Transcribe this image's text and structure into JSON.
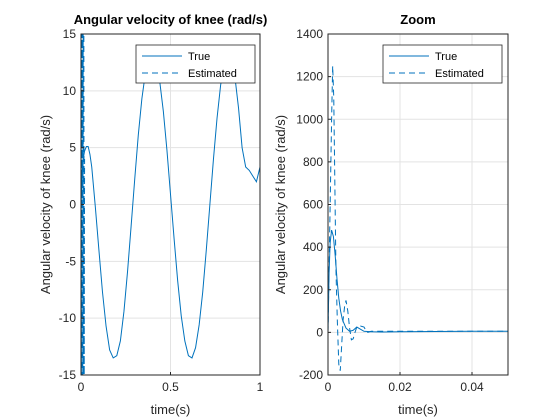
{
  "chart_data": [
    {
      "type": "line",
      "title": "Angular velocity of knee (rad/s)",
      "xlabel": "time(s)",
      "ylabel": "Angular velocity of knee (rad/s)",
      "xlim": [
        0,
        1
      ],
      "ylim": [
        -15,
        15
      ],
      "xticks": [
        0,
        0.5,
        1
      ],
      "xtick_labels": [
        "0",
        "0.5",
        "1"
      ],
      "yticks": [
        -15,
        -10,
        -5,
        0,
        5,
        10,
        15
      ],
      "ytick_labels": [
        "-15",
        "-10",
        "-5",
        "0",
        "5",
        "10",
        "15"
      ],
      "grid": true,
      "legend_position": "top-right",
      "line_color": "#0072BD",
      "series": [
        {
          "name": "True",
          "style": "solid",
          "x": [
            0,
            0.005,
            0.01,
            0.02,
            0.03,
            0.04,
            0.05,
            0.06,
            0.08,
            0.1,
            0.12,
            0.14,
            0.16,
            0.18,
            0.2,
            0.22,
            0.24,
            0.26,
            0.28,
            0.3,
            0.32,
            0.34,
            0.36,
            0.38,
            0.4,
            0.42,
            0.44,
            0.46,
            0.48,
            0.5,
            0.52,
            0.54,
            0.56,
            0.58,
            0.6,
            0.62,
            0.64,
            0.66,
            0.68,
            0.7,
            0.72,
            0.74,
            0.76,
            0.78,
            0.8,
            0.82,
            0.84,
            0.86,
            0.88,
            0.9,
            0.92,
            0.94,
            0.96,
            0.98,
            1.0
          ],
          "y": [
            0,
            2.5,
            3.8,
            4.7,
            5.1,
            5.1,
            4.4,
            3.3,
            -0.2,
            -4.0,
            -7.7,
            -10.7,
            -12.8,
            -13.5,
            -13.3,
            -12.0,
            -9.4,
            -5.9,
            -1.9,
            2.2,
            6.1,
            9.3,
            11.6,
            12.9,
            13.0,
            12.4,
            10.8,
            8.2,
            4.8,
            0.9,
            -3.0,
            -6.7,
            -9.8,
            -12.0,
            -13.3,
            -13.5,
            -12.6,
            -10.6,
            -7.7,
            -4.0,
            0.0,
            4.0,
            7.6,
            10.5,
            12.4,
            13.2,
            12.8,
            11.2,
            8.5,
            5.0,
            3.3,
            3.0,
            2.5,
            2.0,
            3.3
          ]
        },
        {
          "name": "Estimated",
          "style": "dashed",
          "x": [
            0.0,
            0.002,
            0.004,
            0.006,
            0.008,
            0.01,
            0.012,
            0.014,
            0.016,
            0.018,
            0.02
          ],
          "y": [
            15,
            -15,
            15,
            -15,
            15,
            -15,
            15,
            -15,
            15,
            -15,
            4.0
          ]
        }
      ]
    },
    {
      "type": "line",
      "title": "Zoom",
      "xlabel": "time(s)",
      "ylabel": "Angular velocity of knee (rad/s)",
      "xlim": [
        0,
        0.05
      ],
      "ylim": [
        -200,
        1400
      ],
      "xticks": [
        0,
        0.02,
        0.04
      ],
      "xtick_labels": [
        "0",
        "0.02",
        "0.04"
      ],
      "yticks": [
        -200,
        0,
        200,
        400,
        600,
        800,
        1000,
        1200,
        1400
      ],
      "ytick_labels": [
        "-200",
        "0",
        "200",
        "400",
        "600",
        "800",
        "1000",
        "1200",
        "1400"
      ],
      "grid": true,
      "legend_position": "top-right",
      "line_color": "#0072BD",
      "series": [
        {
          "name": "True",
          "style": "solid",
          "x": [
            0,
            0.0003,
            0.0006,
            0.001,
            0.0015,
            0.002,
            0.0025,
            0.003,
            0.0035,
            0.004,
            0.005,
            0.006,
            0.007,
            0.008,
            0.009,
            0.01,
            0.012,
            0.015,
            0.02,
            0.03,
            0.04,
            0.05
          ],
          "y": [
            0,
            280,
            420,
            480,
            450,
            360,
            250,
            160,
            100,
            60,
            20,
            5,
            10,
            25,
            15,
            5,
            3,
            2,
            3,
            4,
            5,
            5
          ]
        },
        {
          "name": "Estimated",
          "style": "dashed",
          "x": [
            0,
            0.0005,
            0.001,
            0.0013,
            0.0016,
            0.0019,
            0.0022,
            0.0026,
            0.003,
            0.0034,
            0.0038,
            0.0042,
            0.0046,
            0.005,
            0.0055,
            0.006,
            0.0065,
            0.007,
            0.0075,
            0.008,
            0.009,
            0.01,
            0.0105,
            0.011,
            0.012,
            0.014,
            0.016,
            0.02,
            0.03,
            0.04,
            0.05
          ],
          "y": [
            0,
            500,
            1000,
            1250,
            1100,
            700,
            300,
            50,
            -150,
            -180,
            -60,
            60,
            120,
            150,
            100,
            20,
            -35,
            -30,
            0,
            25,
            30,
            25,
            10,
            0,
            5,
            5,
            5,
            5,
            5,
            5,
            5
          ]
        }
      ]
    }
  ]
}
